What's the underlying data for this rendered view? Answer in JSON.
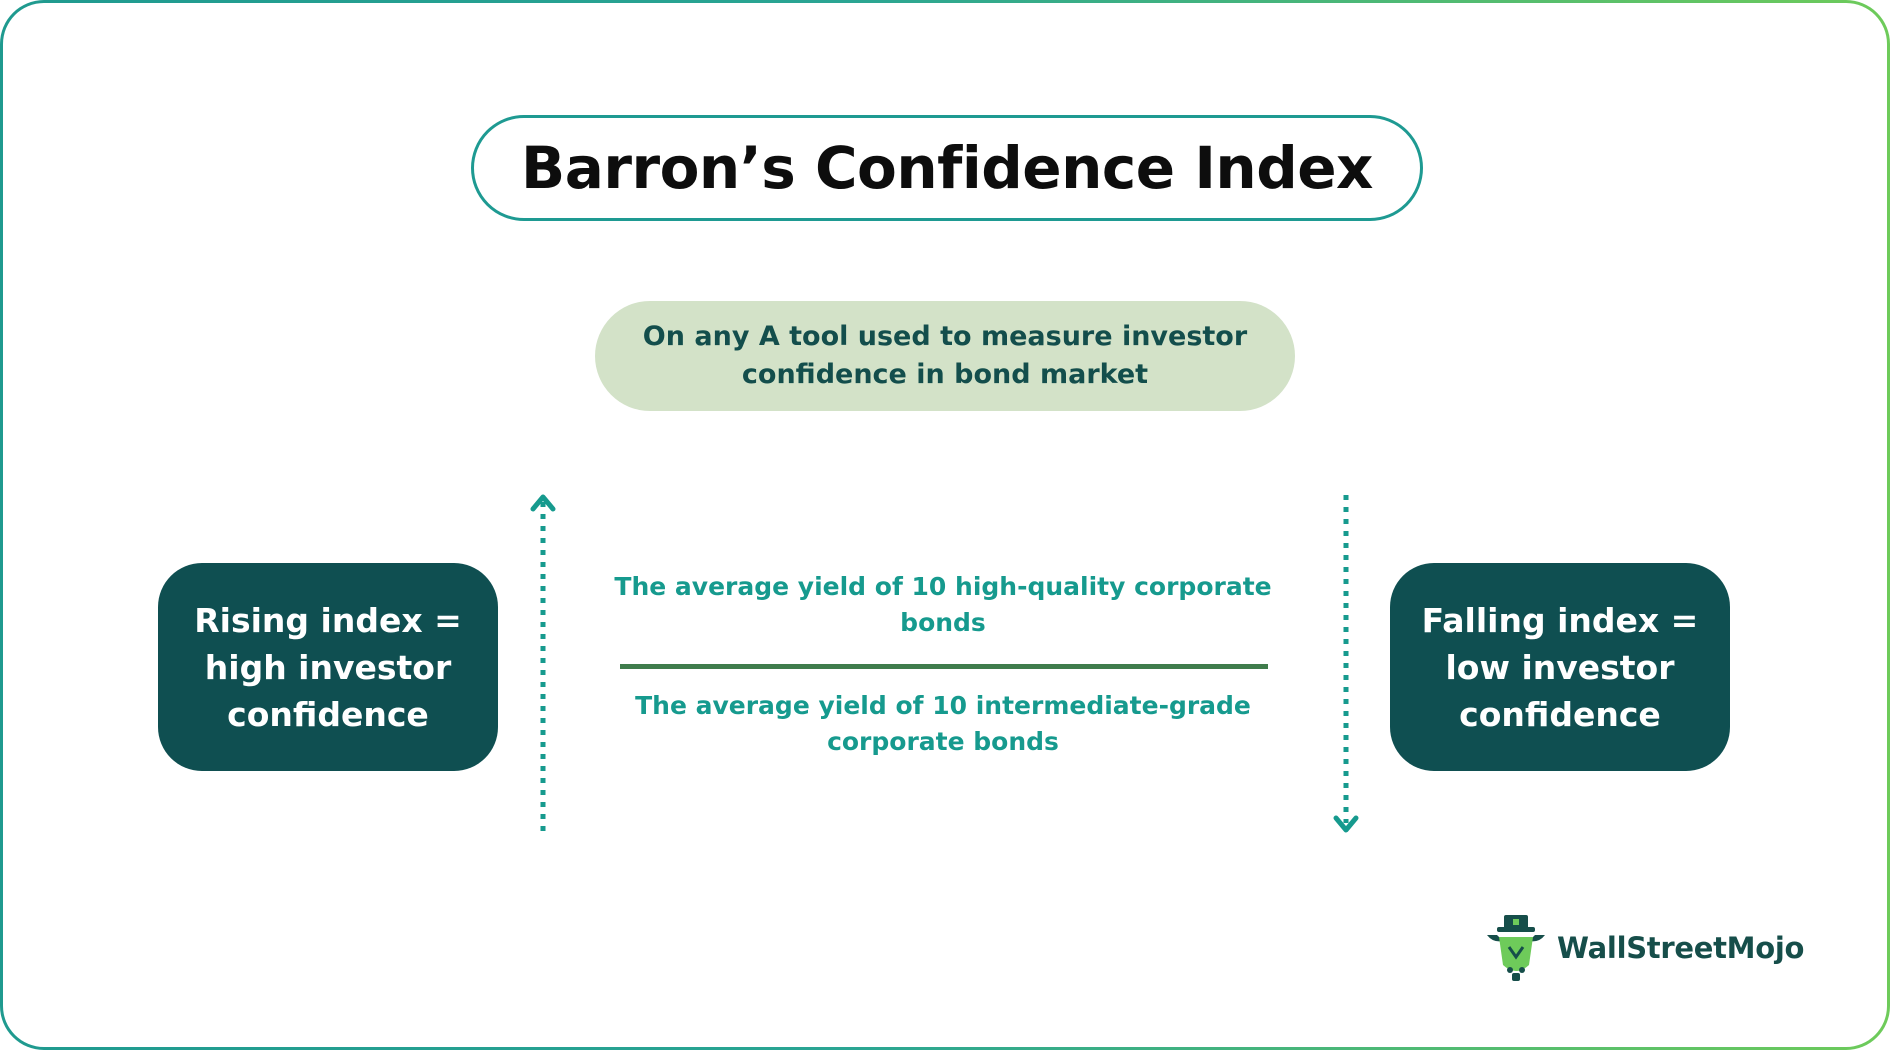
{
  "title": "Barron’s Confidence Index",
  "subtitle": "On any A tool used to measure investor confidence in bond market",
  "left_box": {
    "text": "Rising index = high investor confidence"
  },
  "right_box": {
    "text": "Falling index = low investor confidence"
  },
  "formula": {
    "numerator": "The average yield of 10 high-quality corporate bonds",
    "denominator": "The average yield of 10 intermediate-grade corporate bonds"
  },
  "arrows": {
    "left": "up-arrow-icon",
    "right": "down-arrow-icon"
  },
  "logo": {
    "text": "WallStreetMojo"
  },
  "colors": {
    "dark_teal": "#0f4f51",
    "teal": "#169a8e",
    "pale_green": "#d3e2c8",
    "line_green": "#3f7c4c",
    "border_teal": "#1e9a92"
  }
}
